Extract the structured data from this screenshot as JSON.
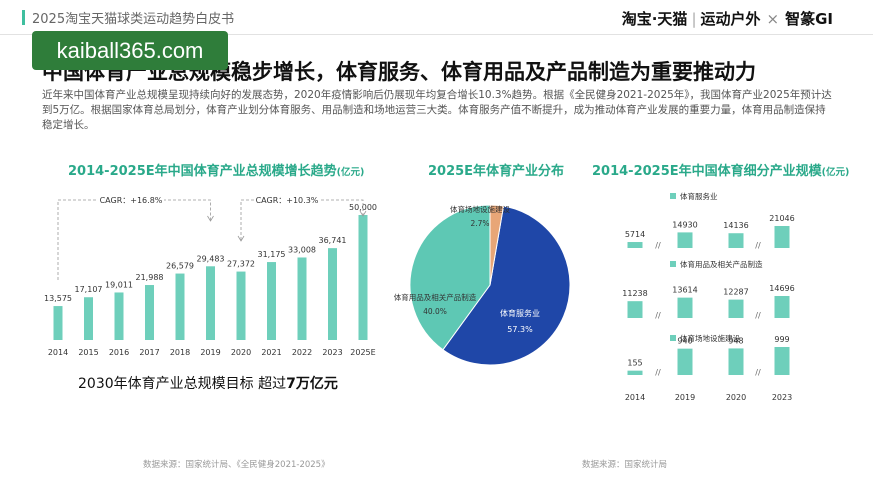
{
  "header": {
    "title": "2025淘宝天猫球类运动趋势白皮书",
    "brand_taobao": "淘宝·天猫",
    "brand_sports": "运动户外",
    "brand_cross": "×",
    "brand_gi": "智篆GI"
  },
  "watermark": "kaiball365.com",
  "headline": "中国体育产业总规模稳步增长，体育服务、体育用品及产品制造为重要推动力",
  "description": "近年来中国体育产业总规模呈现持续向好的发展态势，2020年疫情影响后仍展现年均复合增长10.3%趋势。根据《全民健身2021-2025年》，我国体育产业2025年预计达到5万亿。根据国家体育总局划分，体育产业划分体育服务、用品制造和场地运营三大类。体育服务产值不断提升，成为推动体育产业发展的重要力量，体育用品制造保持稳定增长。",
  "colors": {
    "teal": "#2aa98a",
    "bar": "#6ecfbb",
    "navy": "#1f47a8",
    "pie_teal": "#5ec8b4",
    "pie_orange": "#e8a677"
  },
  "chart_data": [
    {
      "type": "bar",
      "title": "2014-2025E年中国体育产业总规模增长趋势",
      "unit": "(亿元)",
      "categories": [
        "2014",
        "2015",
        "2016",
        "2017",
        "2018",
        "2019",
        "2020",
        "2021",
        "2022",
        "2023",
        "2025E"
      ],
      "values": [
        13575,
        17107,
        19011,
        21988,
        26579,
        29483,
        27372,
        31175,
        33008,
        36741,
        50000
      ],
      "value_labels": [
        "13,575",
        "17,107",
        "19,011",
        "21,988",
        "26,579",
        "29,483",
        "27,372",
        "31,175",
        "33,008",
        "36,741",
        "50,000"
      ],
      "annotations": [
        "CAGR：+16.8%",
        "CAGR：+10.3%"
      ]
    },
    {
      "type": "pie",
      "title": "2025E年体育产业分布",
      "slices": [
        {
          "label": "体育服务业",
          "value": 57.3,
          "value_label": "57.3%"
        },
        {
          "label": "体育用品及相关产品制造",
          "value": 40.0,
          "value_label": "40.0%"
        },
        {
          "label": "体育场地设施建设",
          "value": 2.7,
          "value_label": "2.7%"
        }
      ]
    },
    {
      "type": "bar",
      "title": "2014-2025E年中国体育细分产业规模",
      "unit": "(亿元)",
      "categories": [
        "2014",
        "2019",
        "2020",
        "2023"
      ],
      "series": [
        {
          "name": "体育服务业",
          "values": [
            5714,
            14930,
            14136,
            21046
          ]
        },
        {
          "name": "体育用品及相关产品制造",
          "values": [
            11238,
            13614,
            12287,
            14696
          ]
        },
        {
          "name": "体育场地设施建设",
          "values": [
            155,
            940,
            948,
            999
          ]
        }
      ]
    }
  ],
  "target_text": {
    "prefix": "2030年体育产业总规模目标 超过",
    "bold": "7万亿元"
  },
  "sources": {
    "left": "数据来源：国家统计局、《全民健身2021-2025》",
    "right": "数据来源：国家统计局"
  }
}
